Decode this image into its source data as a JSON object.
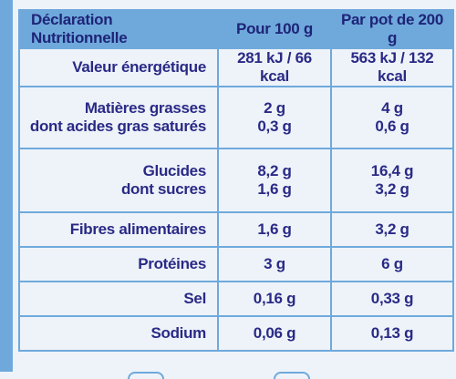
{
  "header": {
    "col1": "Déclaration Nutritionnelle",
    "col2": "Pour 100 g",
    "col3": "Par pot de 200 g"
  },
  "rows": [
    {
      "labels": [
        "Valeur énergétique"
      ],
      "per100": [
        "281 kJ / 66 kcal"
      ],
      "perPot": [
        "563 kJ / 132 kcal"
      ]
    },
    {
      "labels": [
        "Matières grasses",
        "dont acides gras saturés"
      ],
      "per100": [
        "2 g",
        "0,3 g"
      ],
      "perPot": [
        "4 g",
        "0,6 g"
      ]
    },
    {
      "labels": [
        "Glucides",
        "dont sucres"
      ],
      "per100": [
        "8,2 g",
        "1,6 g"
      ],
      "perPot": [
        "16,4 g",
        "3,2 g"
      ]
    },
    {
      "labels": [
        "Fibres alimentaires"
      ],
      "per100": [
        "1,6 g"
      ],
      "perPot": [
        "3,2 g"
      ]
    },
    {
      "labels": [
        "Protéines"
      ],
      "per100": [
        "3 g"
      ],
      "perPot": [
        "6 g"
      ]
    },
    {
      "labels": [
        "Sel"
      ],
      "per100": [
        "0,16 g"
      ],
      "perPot": [
        "0,33 g"
      ]
    },
    {
      "labels": [
        "Sodium"
      ],
      "per100": [
        "0,06 g"
      ],
      "perPot": [
        "0,13 g"
      ]
    }
  ],
  "colors": {
    "border": "#6fa9dc",
    "text": "#2a2a86",
    "background": "#eef3f9"
  }
}
